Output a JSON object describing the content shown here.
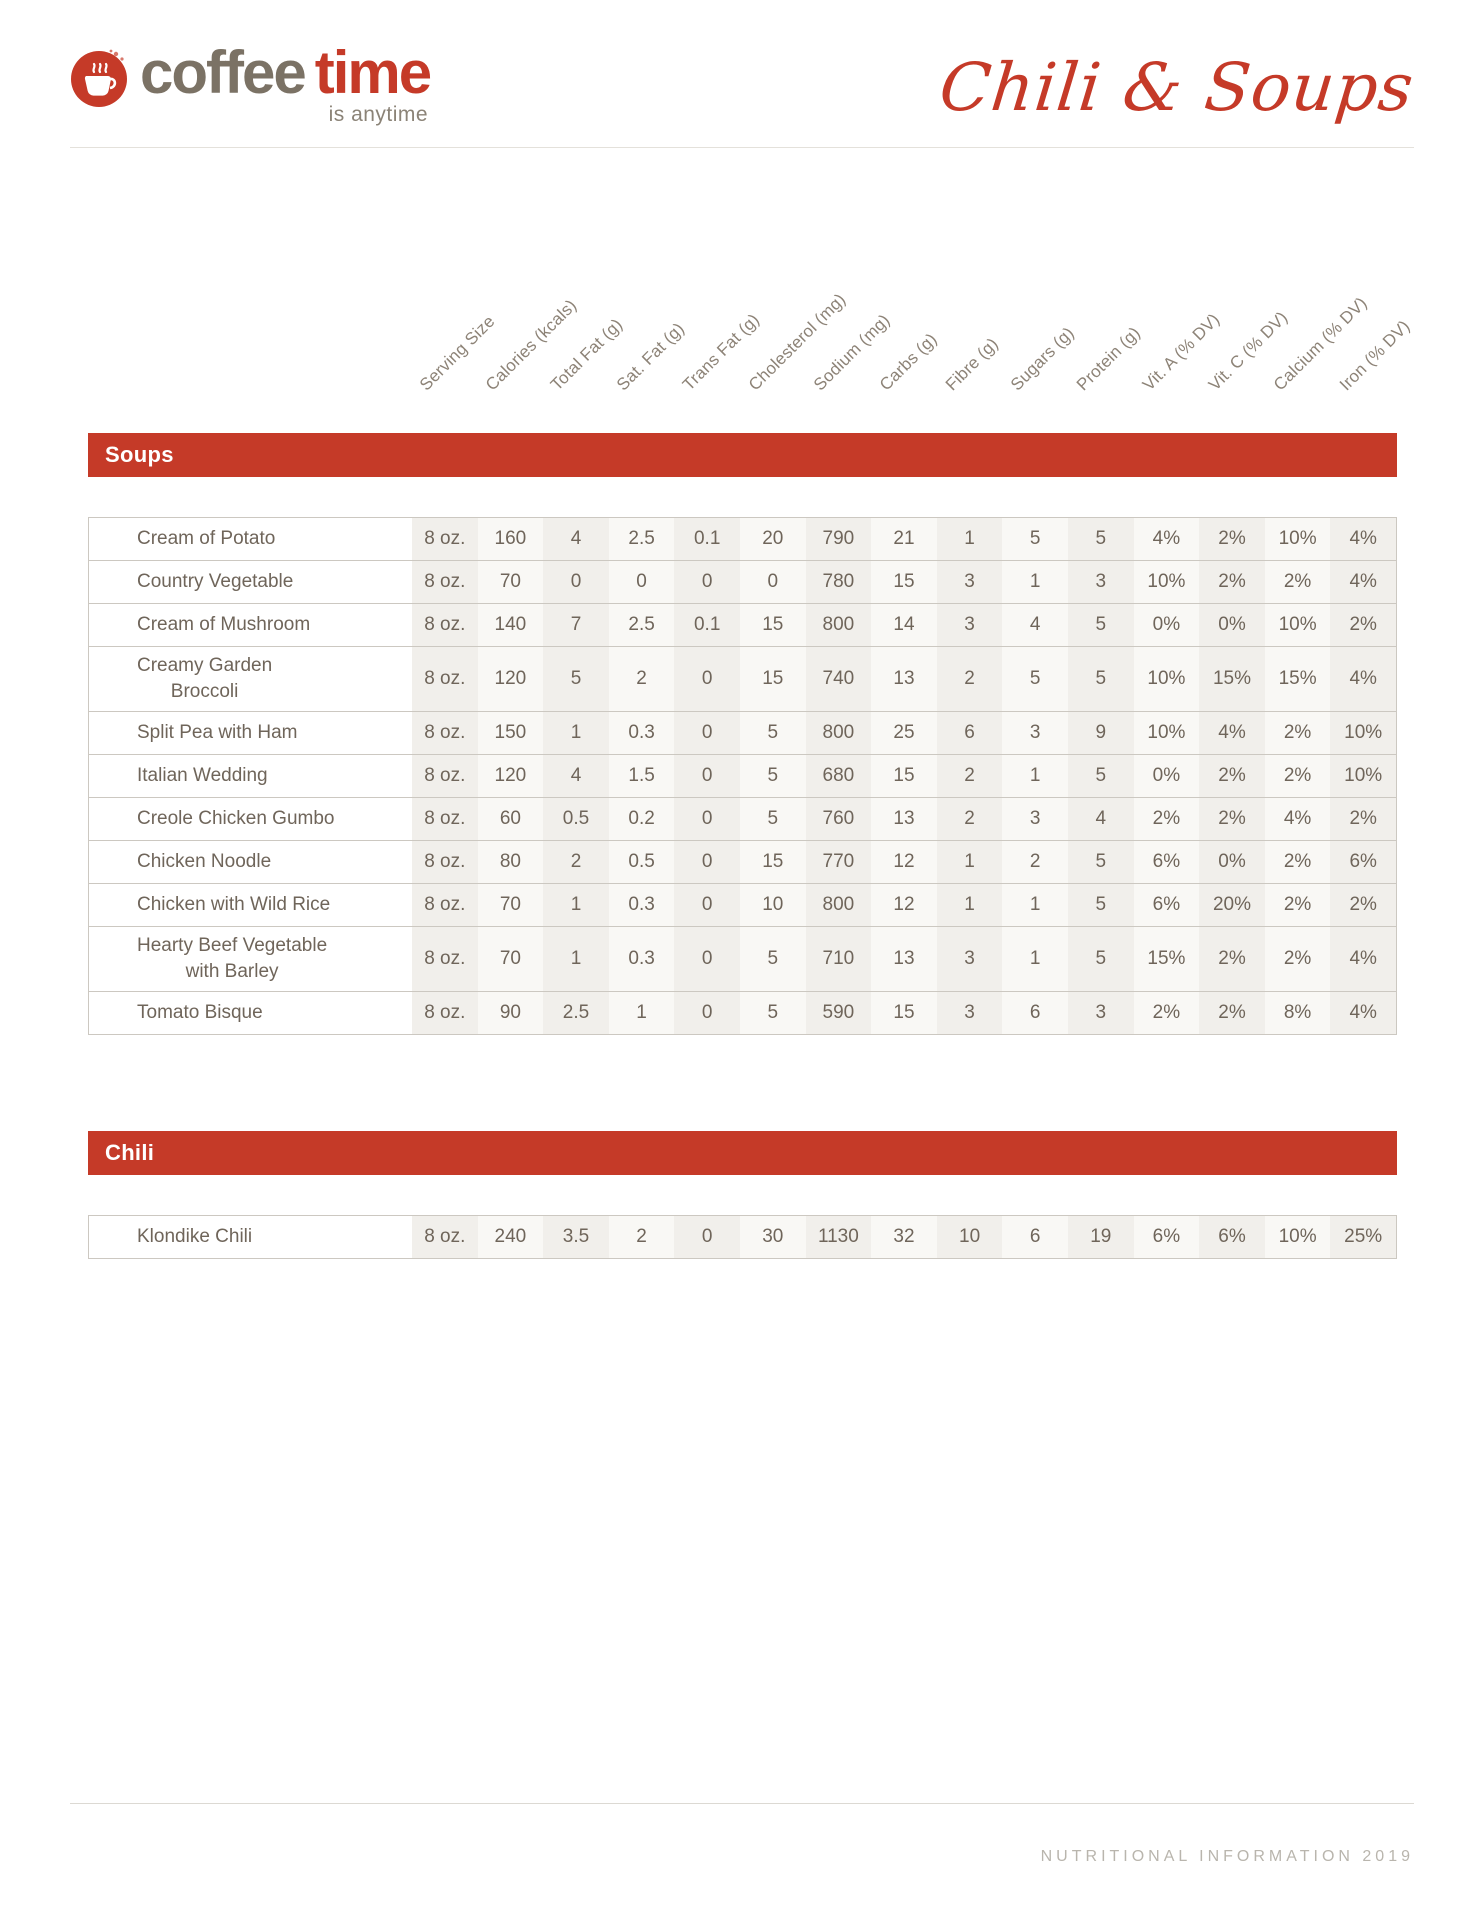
{
  "brand": {
    "name_part1": "coffee",
    "name_part2": "time",
    "tagline": "is anytime"
  },
  "page_title": "Chili & Soups",
  "columns": [
    "Serving Size",
    "Calories (kcals)",
    "Total Fat (g)",
    "Sat. Fat (g)",
    "Trans Fat (g)",
    "Cholesterol (mg)",
    "Sodium (mg)",
    "Carbs (g)",
    "Fibre (g)",
    "Sugars (g)",
    "Protein (g)",
    "Vit. A (% DV)",
    "Vit. C (% DV)",
    "Calcium (% DV)",
    "Iron (% DV)"
  ],
  "sections": [
    {
      "title": "Soups",
      "rows": [
        {
          "name": "Cream of Potato",
          "values": [
            "8 oz.",
            "160",
            "4",
            "2.5",
            "0.1",
            "20",
            "790",
            "21",
            "1",
            "5",
            "5",
            "4%",
            "2%",
            "10%",
            "4%"
          ]
        },
        {
          "name": "Country Vegetable",
          "values": [
            "8 oz.",
            "70",
            "0",
            "0",
            "0",
            "0",
            "780",
            "15",
            "3",
            "1",
            "3",
            "10%",
            "2%",
            "2%",
            "4%"
          ]
        },
        {
          "name": "Cream of Mushroom",
          "values": [
            "8 oz.",
            "140",
            "7",
            "2.5",
            "0.1",
            "15",
            "800",
            "14",
            "3",
            "4",
            "5",
            "0%",
            "0%",
            "10%",
            "2%"
          ]
        },
        {
          "name": "Creamy Garden\nBroccoli",
          "values": [
            "8 oz.",
            "120",
            "5",
            "2",
            "0",
            "15",
            "740",
            "13",
            "2",
            "5",
            "5",
            "10%",
            "15%",
            "15%",
            "4%"
          ]
        },
        {
          "name": "Split Pea with Ham",
          "values": [
            "8 oz.",
            "150",
            "1",
            "0.3",
            "0",
            "5",
            "800",
            "25",
            "6",
            "3",
            "9",
            "10%",
            "4%",
            "2%",
            "10%"
          ]
        },
        {
          "name": "Italian Wedding",
          "values": [
            "8 oz.",
            "120",
            "4",
            "1.5",
            "0",
            "5",
            "680",
            "15",
            "2",
            "1",
            "5",
            "0%",
            "2%",
            "2%",
            "10%"
          ]
        },
        {
          "name": "Creole Chicken Gumbo",
          "values": [
            "8 oz.",
            "60",
            "0.5",
            "0.2",
            "0",
            "5",
            "760",
            "13",
            "2",
            "3",
            "4",
            "2%",
            "2%",
            "4%",
            "2%"
          ]
        },
        {
          "name": "Chicken Noodle",
          "values": [
            "8 oz.",
            "80",
            "2",
            "0.5",
            "0",
            "15",
            "770",
            "12",
            "1",
            "2",
            "5",
            "6%",
            "0%",
            "2%",
            "6%"
          ]
        },
        {
          "name": "Chicken with Wild Rice",
          "values": [
            "8 oz.",
            "70",
            "1",
            "0.3",
            "0",
            "10",
            "800",
            "12",
            "1",
            "1",
            "5",
            "6%",
            "20%",
            "2%",
            "2%"
          ]
        },
        {
          "name": "Hearty Beef Vegetable\nwith Barley",
          "values": [
            "8 oz.",
            "70",
            "1",
            "0.3",
            "0",
            "5",
            "710",
            "13",
            "3",
            "1",
            "5",
            "15%",
            "2%",
            "2%",
            "4%"
          ]
        },
        {
          "name": "Tomato Bisque",
          "values": [
            "8 oz.",
            "90",
            "2.5",
            "1",
            "0",
            "5",
            "590",
            "15",
            "3",
            "6",
            "3",
            "2%",
            "2%",
            "8%",
            "4%"
          ]
        }
      ]
    },
    {
      "title": "Chili",
      "rows": [
        {
          "name": "Klondike Chili",
          "values": [
            "8 oz.",
            "240",
            "3.5",
            "2",
            "0",
            "30",
            "1130",
            "32",
            "10",
            "6",
            "19",
            "6%",
            "6%",
            "10%",
            "25%"
          ]
        }
      ]
    }
  ],
  "footer": {
    "label": "NUTRITIONAL INFORMATION 2019"
  },
  "colors": {
    "accent_red": "#c53a28",
    "text_brown": "#6f655a",
    "logo_taupe": "#7b7265"
  }
}
